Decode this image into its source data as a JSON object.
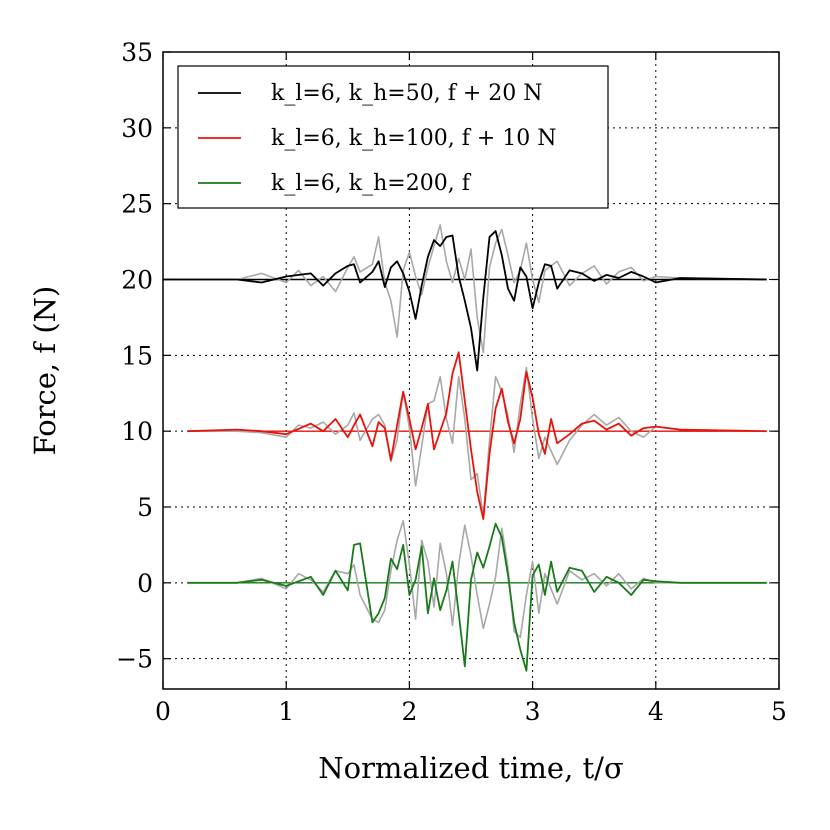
{
  "chart_data": {
    "type": "line",
    "title": "",
    "xlabel": "Normalized time, t/σ",
    "ylabel": "Force, f (N)",
    "xlim": [
      0,
      5
    ],
    "ylim": [
      -7,
      35
    ],
    "xticks": [
      0,
      1,
      2,
      3,
      4,
      5
    ],
    "xtick_labels": [
      "0",
      "1",
      "2",
      "3",
      "4",
      "5"
    ],
    "yticks": [
      -5,
      0,
      5,
      10,
      15,
      20,
      25,
      30,
      35
    ],
    "ytick_labels": [
      "−5",
      "0",
      "5",
      "10",
      "15",
      "20",
      "25",
      "30",
      "35"
    ],
    "grid": true,
    "legend_position": "top-left",
    "colors": {
      "black": "#000000",
      "red": "#e8140c",
      "green": "#1a7a1a",
      "reference": "#a8a8a8"
    },
    "series": [
      {
        "name": "k_l=6, k_h=50, f + 20 N",
        "color": "#000000",
        "offset": 20,
        "x": [
          0.0,
          0.6,
          0.8,
          1.0,
          1.2,
          1.3,
          1.4,
          1.5,
          1.55,
          1.6,
          1.7,
          1.75,
          1.8,
          1.85,
          1.9,
          1.95,
          2.0,
          2.05,
          2.1,
          2.15,
          2.2,
          2.25,
          2.3,
          2.35,
          2.4,
          2.45,
          2.5,
          2.55,
          2.6,
          2.65,
          2.7,
          2.75,
          2.8,
          2.85,
          2.9,
          2.95,
          3.0,
          3.05,
          3.1,
          3.15,
          3.2,
          3.3,
          3.4,
          3.5,
          3.6,
          3.7,
          3.8,
          3.9,
          4.0,
          4.2,
          4.9
        ],
        "y": [
          20.0,
          20.0,
          19.8,
          20.2,
          20.4,
          19.6,
          20.4,
          20.9,
          21.0,
          19.8,
          20.5,
          21.2,
          19.5,
          20.8,
          21.2,
          20.4,
          19.2,
          17.4,
          19.6,
          21.5,
          22.6,
          22.2,
          22.8,
          22.9,
          20.2,
          18.6,
          16.8,
          14.0,
          18.8,
          22.8,
          23.2,
          21.6,
          19.4,
          18.6,
          20.8,
          20.2,
          18.1,
          19.8,
          21.0,
          20.9,
          19.4,
          20.6,
          20.4,
          19.9,
          20.3,
          20.1,
          20.5,
          20.2,
          19.8,
          20.1,
          20.0
        ]
      },
      {
        "name": "k_l=6, k_h=100, f + 10 N",
        "color": "#e8140c",
        "offset": 10,
        "x": [
          0.2,
          0.6,
          0.8,
          1.0,
          1.2,
          1.3,
          1.4,
          1.5,
          1.55,
          1.6,
          1.7,
          1.75,
          1.8,
          1.85,
          1.9,
          1.95,
          2.0,
          2.05,
          2.1,
          2.15,
          2.2,
          2.25,
          2.3,
          2.35,
          2.4,
          2.45,
          2.5,
          2.55,
          2.6,
          2.65,
          2.7,
          2.75,
          2.8,
          2.85,
          2.9,
          2.95,
          3.0,
          3.05,
          3.1,
          3.15,
          3.2,
          3.3,
          3.4,
          3.5,
          3.6,
          3.7,
          3.8,
          3.9,
          4.0,
          4.2,
          4.9
        ],
        "y": [
          10.0,
          10.1,
          10.0,
          9.8,
          10.5,
          10.0,
          10.8,
          9.6,
          10.4,
          11.1,
          9.0,
          10.6,
          10.2,
          8.1,
          10.4,
          12.6,
          10.8,
          8.8,
          10.2,
          11.8,
          8.8,
          10.0,
          11.2,
          13.8,
          15.2,
          12.0,
          8.8,
          6.0,
          4.2,
          8.5,
          11.5,
          12.8,
          10.6,
          9.2,
          10.8,
          13.9,
          12.2,
          9.8,
          8.5,
          10.8,
          9.2,
          9.8,
          10.5,
          10.7,
          10.1,
          10.5,
          9.7,
          10.2,
          10.3,
          10.1,
          10.0
        ]
      },
      {
        "name": "k_l=6, k_h=200, f",
        "color": "#1a7a1a",
        "offset": 0,
        "x": [
          0.2,
          0.6,
          0.8,
          1.0,
          1.2,
          1.3,
          1.4,
          1.5,
          1.55,
          1.6,
          1.7,
          1.75,
          1.8,
          1.85,
          1.9,
          1.95,
          2.0,
          2.05,
          2.1,
          2.15,
          2.2,
          2.25,
          2.3,
          2.35,
          2.4,
          2.45,
          2.5,
          2.55,
          2.6,
          2.65,
          2.7,
          2.75,
          2.8,
          2.85,
          2.9,
          2.95,
          3.0,
          3.05,
          3.1,
          3.15,
          3.2,
          3.3,
          3.4,
          3.5,
          3.6,
          3.7,
          3.8,
          3.9,
          4.0,
          4.2,
          4.9
        ],
        "y": [
          0.0,
          0.0,
          0.2,
          -0.2,
          0.4,
          -0.8,
          0.8,
          -0.5,
          2.5,
          2.6,
          -2.6,
          -2.0,
          -1.0,
          1.6,
          0.9,
          2.5,
          -0.8,
          0.2,
          2.4,
          -2.0,
          0.3,
          -1.8,
          -0.5,
          1.4,
          -2.0,
          -5.5,
          0.2,
          2.0,
          1.0,
          2.4,
          3.9,
          3.0,
          0.5,
          -2.6,
          -4.4,
          -5.8,
          0.5,
          1.2,
          -0.8,
          1.4,
          -0.6,
          1.0,
          0.8,
          -0.6,
          0.4,
          0.0,
          -0.8,
          0.2,
          0.1,
          0.0,
          0.0
        ]
      },
      {
        "name": "reference-gray-top",
        "color": "#a8a8a8",
        "offset": 20,
        "x": [
          0.0,
          0.6,
          0.8,
          1.0,
          1.1,
          1.2,
          1.3,
          1.4,
          1.5,
          1.55,
          1.6,
          1.7,
          1.75,
          1.8,
          1.85,
          1.9,
          1.95,
          2.0,
          2.05,
          2.1,
          2.15,
          2.2,
          2.25,
          2.3,
          2.35,
          2.4,
          2.45,
          2.5,
          2.55,
          2.6,
          2.65,
          2.7,
          2.75,
          2.8,
          2.85,
          2.9,
          2.95,
          3.0,
          3.05,
          3.1,
          3.2,
          3.3,
          3.4,
          3.5,
          3.6,
          3.7,
          3.8,
          3.9,
          4.0,
          4.2,
          4.9
        ],
        "y": [
          20.0,
          20.0,
          20.4,
          19.8,
          20.6,
          19.6,
          20.2,
          19.2,
          20.8,
          21.5,
          20.5,
          21.0,
          22.8,
          19.8,
          18.6,
          16.2,
          20.6,
          21.8,
          20.2,
          19.0,
          20.8,
          22.2,
          23.6,
          21.2,
          19.8,
          21.4,
          20.0,
          22.0,
          17.5,
          15.2,
          20.8,
          22.4,
          23.3,
          21.6,
          19.8,
          20.6,
          22.4,
          20.0,
          18.5,
          20.6,
          21.2,
          19.6,
          20.4,
          20.9,
          19.7,
          20.5,
          20.8,
          19.9,
          20.2,
          20.1,
          20.0
        ]
      },
      {
        "name": "reference-gray-middle",
        "color": "#a8a8a8",
        "offset": 10,
        "x": [
          0.2,
          0.6,
          0.8,
          1.0,
          1.1,
          1.2,
          1.3,
          1.4,
          1.5,
          1.55,
          1.6,
          1.7,
          1.75,
          1.8,
          1.85,
          1.9,
          1.95,
          2.0,
          2.05,
          2.1,
          2.15,
          2.2,
          2.25,
          2.3,
          2.35,
          2.4,
          2.45,
          2.5,
          2.55,
          2.6,
          2.65,
          2.7,
          2.75,
          2.8,
          2.85,
          2.9,
          2.95,
          3.0,
          3.05,
          3.1,
          3.2,
          3.3,
          3.4,
          3.5,
          3.6,
          3.7,
          3.8,
          3.9,
          4.0,
          4.2,
          4.9
        ],
        "y": [
          10.0,
          10.0,
          9.9,
          9.6,
          10.4,
          10.2,
          10.6,
          9.8,
          10.4,
          11.2,
          9.4,
          10.8,
          11.1,
          10.4,
          8.0,
          9.4,
          12.6,
          10.2,
          6.4,
          9.0,
          11.8,
          12.0,
          13.6,
          10.8,
          9.2,
          13.6,
          10.8,
          6.8,
          7.2,
          4.4,
          9.4,
          13.6,
          12.6,
          11.0,
          8.6,
          11.8,
          14.2,
          10.8,
          8.2,
          9.6,
          7.8,
          9.4,
          10.4,
          11.1,
          10.4,
          10.9,
          10.0,
          9.6,
          10.3,
          10.1,
          10.0
        ]
      },
      {
        "name": "reference-gray-bottom",
        "color": "#a8a8a8",
        "offset": 0,
        "x": [
          0.2,
          0.6,
          0.8,
          1.0,
          1.1,
          1.2,
          1.3,
          1.4,
          1.5,
          1.55,
          1.6,
          1.7,
          1.75,
          1.8,
          1.85,
          1.9,
          1.95,
          2.0,
          2.05,
          2.1,
          2.15,
          2.2,
          2.25,
          2.3,
          2.35,
          2.4,
          2.45,
          2.5,
          2.55,
          2.6,
          2.65,
          2.7,
          2.75,
          2.8,
          2.85,
          2.9,
          2.95,
          3.0,
          3.05,
          3.1,
          3.2,
          3.3,
          3.4,
          3.5,
          3.6,
          3.7,
          3.8,
          3.9,
          4.0,
          4.2,
          4.9
        ],
        "y": [
          0.0,
          0.0,
          0.3,
          -0.4,
          0.6,
          0.2,
          -0.6,
          0.8,
          0.6,
          1.2,
          -0.8,
          -2.4,
          -2.6,
          -1.8,
          0.8,
          2.8,
          4.1,
          1.2,
          -2.4,
          2.8,
          1.4,
          -1.6,
          2.6,
          0.6,
          -2.8,
          1.2,
          3.8,
          1.8,
          -0.8,
          -3.0,
          -1.4,
          0.4,
          3.6,
          1.0,
          -3.2,
          -3.6,
          -0.8,
          1.4,
          -2.0,
          0.6,
          -1.4,
          0.8,
          0.2,
          0.6,
          -0.2,
          0.6,
          -0.4,
          0.3,
          0.0,
          0.0,
          0.0
        ]
      }
    ],
    "legend": [
      {
        "label_parts": [
          [
            "kl",
            "italic"
          ],
          [
            "l",
            "sub"
          ],
          [
            "=6, ",
            "normal"
          ],
          [
            "kh",
            "italic"
          ],
          [
            "h",
            "sub"
          ],
          [
            "=50, ",
            "normal"
          ],
          [
            "f",
            "italic"
          ],
          [
            " + 20 N",
            "normal"
          ]
        ],
        "text": "k_l=6, k_h=50, f + 20 N",
        "color": "#000000"
      },
      {
        "label_parts": [
          [
            "kl",
            "italic"
          ],
          [
            "l",
            "sub"
          ],
          [
            "=6, ",
            "normal"
          ],
          [
            "kh",
            "italic"
          ],
          [
            "h",
            "sub"
          ],
          [
            "=100, ",
            "normal"
          ],
          [
            "f",
            "italic"
          ],
          [
            " + 10 N",
            "normal"
          ]
        ],
        "text": "k_l=6, k_h=100, f + 10 N",
        "color": "#e8140c"
      },
      {
        "label_parts": [
          [
            "kl",
            "italic"
          ],
          [
            "l",
            "sub"
          ],
          [
            "=6, ",
            "normal"
          ],
          [
            "kh",
            "italic"
          ],
          [
            "h",
            "sub"
          ],
          [
            "=200, ",
            "normal"
          ],
          [
            "f",
            "italic"
          ]
        ],
        "text": "k_l=6, k_h=200, f",
        "color": "#1a7a1a"
      }
    ]
  }
}
